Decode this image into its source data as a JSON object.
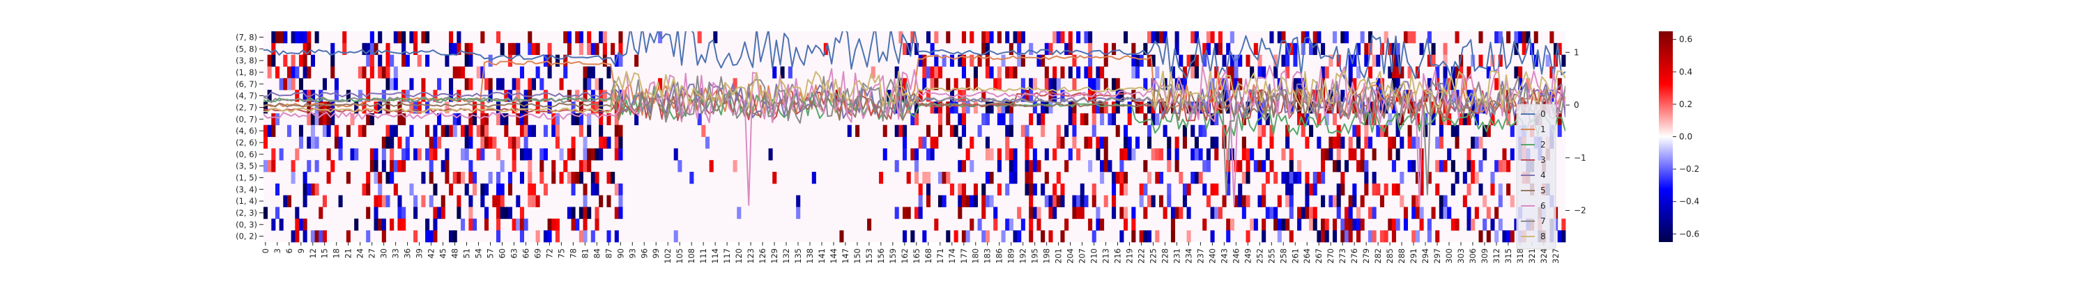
{
  "chart_data": {
    "type": "heatmap",
    "title": "",
    "xlabel": "",
    "ylabel": "",
    "heatmap": {
      "n_columns": 330,
      "row_labels": [
        "(7, 8)",
        "(5, 8)",
        "(3, 8)",
        "(1, 8)",
        "(6, 7)",
        "(4, 7)",
        "(2, 7)",
        "(0, 7)",
        "(4, 6)",
        "(2, 6)",
        "(0, 6)",
        "(3, 5)",
        "(1, 5)",
        "(3, 4)",
        "(1, 4)",
        "(2, 3)",
        "(0, 3)",
        "(0, 2)"
      ],
      "x_tick_labels": [
        "0",
        "3",
        "6",
        "9",
        "12",
        "15",
        "18",
        "21",
        "24",
        "27",
        "30",
        "33",
        "36",
        "39",
        "42",
        "45",
        "48",
        "51",
        "54",
        "57",
        "60",
        "63",
        "66",
        "69",
        "72",
        "75",
        "78",
        "81",
        "84",
        "87",
        "90",
        "93",
        "96",
        "99",
        "102",
        "105",
        "108",
        "111",
        "114",
        "117",
        "120",
        "123",
        "126",
        "129",
        "132",
        "135",
        "138",
        "141",
        "144",
        "147",
        "150",
        "153",
        "156",
        "159",
        "162",
        "165",
        "168",
        "171",
        "174",
        "177",
        "180",
        "183",
        "186",
        "189",
        "192",
        "195",
        "198",
        "201",
        "204",
        "207",
        "210",
        "213",
        "216",
        "219",
        "222",
        "225",
        "228",
        "231",
        "234",
        "237",
        "240",
        "243",
        "246",
        "249",
        "252",
        "255",
        "258",
        "261",
        "264",
        "267",
        "270",
        "273",
        "276",
        "279",
        "282",
        "285",
        "288",
        "291",
        "294",
        "297",
        "300",
        "303",
        "306",
        "309",
        "312",
        "315",
        "318",
        "321",
        "324",
        "327"
      ],
      "value_range": [
        -0.65,
        0.65
      ],
      "colormap": "seismic (blue - white - red)"
    },
    "colorbar": {
      "ticks": [
        0.6,
        0.4,
        0.2,
        0.0,
        -0.2,
        -0.4,
        -0.6
      ],
      "tick_labels": [
        "0.6",
        "0.4",
        "0.2",
        "0.0",
        "−0.2",
        "−0.4",
        "−0.6"
      ],
      "range": [
        -0.65,
        0.65
      ]
    },
    "line_overlay": {
      "y_axis_side": "right",
      "yticks": [
        1,
        0,
        -1,
        -2
      ],
      "ytick_labels": [
        "1",
        "0",
        "−1",
        "−2"
      ],
      "ylim": [
        -2.6,
        1.4
      ],
      "x_range": [
        0,
        330
      ],
      "legend": {
        "position": "right",
        "labels": [
          "0",
          "1",
          "2",
          "3",
          "4",
          "5",
          "6",
          "7",
          "8"
        ]
      },
      "series": [
        {
          "name": "0",
          "color": "#4c72b0",
          "base": [
            [
              0,
              1.0
            ],
            [
              54,
              1.0
            ],
            [
              55,
              0.9
            ],
            [
              88,
              0.9
            ],
            [
              89,
              1.1
            ],
            [
              165,
              1.1
            ],
            [
              166,
              1.0
            ],
            [
              225,
              1.0
            ],
            [
              226,
              0.9
            ],
            [
              330,
              0.9
            ]
          ],
          "noise": 0.42,
          "noise_zone": [
            [
              89,
              165
            ],
            [
              226,
              330
            ]
          ]
        },
        {
          "name": "1",
          "color": "#dd8452",
          "base": [
            [
              0,
              0.0
            ],
            [
              25,
              0.0
            ],
            [
              26,
              0.1
            ],
            [
              55,
              0.1
            ],
            [
              56,
              0.8
            ],
            [
              88,
              0.8
            ],
            [
              89,
              0.1
            ],
            [
              165,
              0.1
            ],
            [
              166,
              0.9
            ],
            [
              225,
              0.9
            ],
            [
              226,
              0.1
            ],
            [
              330,
              0.1
            ]
          ],
          "noise": 0.3,
          "noise_zone": [
            [
              89,
              165
            ],
            [
              226,
              330
            ]
          ]
        },
        {
          "name": "2",
          "color": "#55a868",
          "base": [
            [
              0,
              0.1
            ],
            [
              88,
              0.1
            ],
            [
              89,
              0.0
            ],
            [
              220,
              0.0
            ],
            [
              221,
              -0.3
            ],
            [
              330,
              -0.3
            ]
          ],
          "noise": 0.28,
          "noise_zone": [
            [
              89,
              165
            ],
            [
              226,
              330
            ]
          ]
        },
        {
          "name": "3",
          "color": "#c44e52",
          "base": [
            [
              0,
              -0.1
            ],
            [
              88,
              -0.1
            ],
            [
              89,
              0.0
            ],
            [
              190,
              0.0
            ],
            [
              191,
              0.2
            ],
            [
              220,
              0.2
            ],
            [
              221,
              0.0
            ],
            [
              330,
              0.0
            ]
          ],
          "noise": 0.3,
          "noise_zone": [
            [
              89,
              165
            ],
            [
              226,
              330
            ]
          ]
        },
        {
          "name": "4",
          "color": "#8172b3",
          "base": [
            [
              0,
              0.2
            ],
            [
              88,
              0.2
            ],
            [
              89,
              0.1
            ],
            [
              330,
              0.1
            ]
          ],
          "noise": 0.35,
          "noise_zone": [
            [
              89,
              165
            ],
            [
              226,
              330
            ]
          ]
        },
        {
          "name": "5",
          "color": "#937860",
          "base": [
            [
              0,
              0.0
            ],
            [
              330,
              0.0
            ]
          ],
          "noise": 0.3,
          "noise_zone": [
            [
              89,
              165
            ],
            [
              226,
              330
            ]
          ]
        },
        {
          "name": "6",
          "color": "#da8bc3",
          "base": [
            [
              0,
              -0.2
            ],
            [
              88,
              -0.2
            ],
            [
              89,
              0.2
            ],
            [
              330,
              0.2
            ]
          ],
          "noise": 0.55,
          "noise_zone": [
            [
              89,
              165
            ],
            [
              226,
              330
            ]
          ]
        },
        {
          "name": "7",
          "color": "#8c8c8c",
          "base": [
            [
              0,
              0.1
            ],
            [
              330,
              0.1
            ]
          ],
          "noise": 0.45,
          "noise_zone": [
            [
              89,
              165
            ],
            [
              226,
              330
            ]
          ]
        },
        {
          "name": "8",
          "color": "#ccb974",
          "base": [
            [
              0,
              -0.1
            ],
            [
              88,
              -0.1
            ],
            [
              89,
              0.3
            ],
            [
              330,
              0.3
            ]
          ],
          "noise": 0.35,
          "noise_zone": [
            [
              89,
              165
            ],
            [
              226,
              330
            ]
          ]
        }
      ]
    }
  },
  "colors": {
    "legend_bg": "#eaeaf2",
    "tick_color": "#222222"
  }
}
